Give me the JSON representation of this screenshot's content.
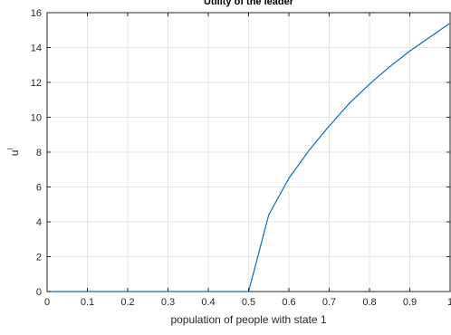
{
  "chart_data": {
    "type": "line",
    "title": "Utility of the leader",
    "xlabel": "population of people with state 1",
    "ylabel": {
      "base": "u",
      "superscript": "l"
    },
    "xlim": [
      0,
      1
    ],
    "ylim": [
      0,
      16
    ],
    "x_ticks": [
      0,
      0.1,
      0.2,
      0.3,
      0.4,
      0.5,
      0.6,
      0.7,
      0.8,
      0.9,
      1
    ],
    "x_tick_labels": [
      "0",
      "0.1",
      "0.2",
      "0.3",
      "0.4",
      "0.5",
      "0.6",
      "0.7",
      "0.8",
      "0.9",
      "1"
    ],
    "y_ticks": [
      0,
      2,
      4,
      6,
      8,
      10,
      12,
      14,
      16
    ],
    "y_tick_labels": [
      "0",
      "2",
      "4",
      "6",
      "8",
      "10",
      "12",
      "14",
      "16"
    ],
    "grid": true,
    "line_color": "#0072bd",
    "series": [
      {
        "x": [
          0,
          0.05,
          0.1,
          0.15,
          0.2,
          0.25,
          0.3,
          0.35,
          0.4,
          0.45,
          0.5,
          0.55,
          0.6,
          0.65,
          0.7,
          0.75,
          0.8,
          0.85,
          0.9,
          0.95,
          1
        ],
        "values": [
          0,
          0,
          0,
          0,
          0,
          0,
          0,
          0,
          0,
          0,
          0,
          4.4,
          6.5,
          8.1,
          9.5,
          10.8,
          11.9,
          12.9,
          13.8,
          14.6,
          15.4
        ]
      }
    ]
  }
}
